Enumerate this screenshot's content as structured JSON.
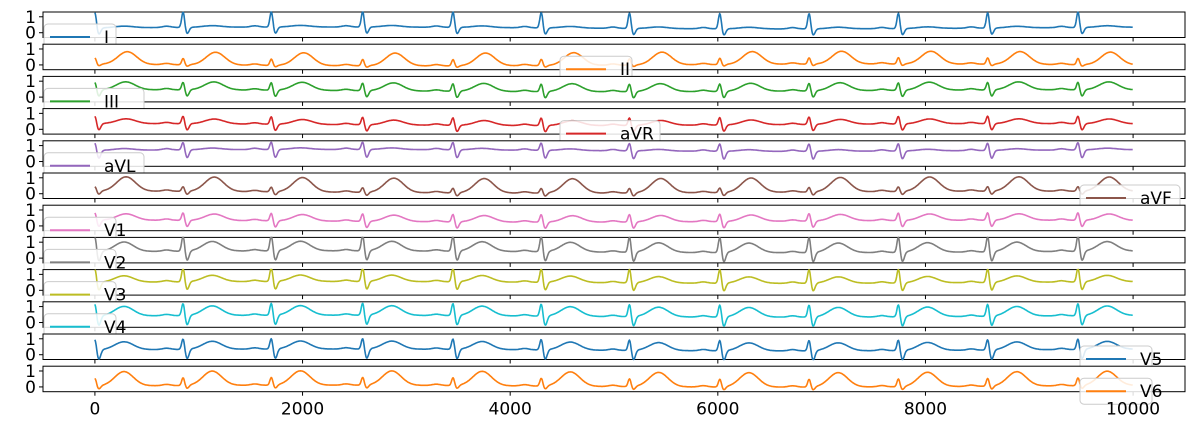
{
  "chart_data": {
    "type": "line",
    "layout": "12 stacked subplots sharing one x axis",
    "x_range": [
      0,
      10000
    ],
    "xlim": [
      -500,
      10500
    ],
    "x_ticks": [
      0,
      2000,
      4000,
      6000,
      8000,
      10000
    ],
    "x_tick_labels": [
      "0",
      "2000",
      "4000",
      "6000",
      "8000",
      "10000"
    ],
    "y_ticks": [
      1,
      0
    ],
    "y_tick_labels": [
      "1",
      "0"
    ],
    "grid": false,
    "title": "",
    "xlabel": "",
    "ylabel": "",
    "beats": [
      0,
      850,
      1700,
      2580,
      3450,
      4300,
      5150,
      6020,
      6880,
      7740,
      8600,
      9470
    ],
    "series": [
      {
        "name": "I",
        "color": "#1f77b4",
        "legend": "left",
        "ylim": [
          -0.3,
          1.3
        ],
        "baseline": 0.3,
        "qrs": [
          1.0,
          -0.4
        ],
        "t_wave": 0.1,
        "offset": 0.0
      },
      {
        "name": "II",
        "color": "#ff7f0e",
        "legend": "center",
        "ylim": [
          -0.3,
          1.3
        ],
        "baseline": 0.0,
        "qrs": [
          0.4,
          -0.1
        ],
        "t_wave": 0.8,
        "offset": 0.8
      },
      {
        "name": "III",
        "color": "#2ca02c",
        "legend": "left",
        "ylim": [
          -0.3,
          1.3
        ],
        "baseline": 0.4,
        "qrs": [
          0.5,
          -0.4
        ],
        "t_wave": 0.5,
        "offset": 0.4
      },
      {
        "name": "aVR",
        "color": "#d62728",
        "legend": "center",
        "ylim": [
          -0.3,
          1.3
        ],
        "baseline": 0.3,
        "qrs": [
          0.5,
          -0.4
        ],
        "t_wave": 0.3,
        "offset": 0.5
      },
      {
        "name": "aVL",
        "color": "#9467bd",
        "legend": "left",
        "ylim": [
          -0.3,
          1.3
        ],
        "baseline": 0.7,
        "qrs": [
          0.5,
          -0.5
        ],
        "t_wave": 0.1,
        "offset": 0.0
      },
      {
        "name": "aVF",
        "color": "#8c564b",
        "legend": "right",
        "ylim": [
          -0.3,
          1.3
        ],
        "baseline": 0.1,
        "qrs": [
          0.3,
          -0.2
        ],
        "t_wave": 0.9,
        "offset": 0.5
      },
      {
        "name": "V1",
        "color": "#e377c2",
        "legend": "left",
        "ylim": [
          -0.3,
          1.3
        ],
        "baseline": 0.3,
        "qrs": [
          0.5,
          -0.4
        ],
        "t_wave": 0.4,
        "offset": 0.5
      },
      {
        "name": "V2",
        "color": "#7f7f7f",
        "legend": "left",
        "ylim": [
          -0.3,
          1.3
        ],
        "baseline": 0.4,
        "qrs": [
          1.0,
          -0.6
        ],
        "t_wave": 0.6,
        "offset": 0.0
      },
      {
        "name": "V3",
        "color": "#bcbd22",
        "legend": "left",
        "ylim": [
          -0.3,
          1.3
        ],
        "baseline": 0.5,
        "qrs": [
          0.9,
          -0.5
        ],
        "t_wave": 0.4,
        "offset": 0.0
      },
      {
        "name": "V4",
        "color": "#17becf",
        "legend": "left",
        "ylim": [
          -0.3,
          1.3
        ],
        "baseline": 0.4,
        "qrs": [
          0.8,
          -0.6
        ],
        "t_wave": 0.6,
        "offset": 0.0
      },
      {
        "name": "V5",
        "color": "#1f77b4",
        "legend": "right",
        "ylim": [
          -0.3,
          1.3
        ],
        "baseline": 0.3,
        "qrs": [
          0.7,
          -0.6
        ],
        "t_wave": 0.5,
        "offset": 0.0
      },
      {
        "name": "V6",
        "color": "#ff7f0e",
        "legend": "right",
        "ylim": [
          -0.3,
          1.3
        ],
        "baseline": 0.05,
        "qrs": [
          0.5,
          -0.2
        ],
        "t_wave": 0.9,
        "offset": 0.0
      }
    ]
  }
}
